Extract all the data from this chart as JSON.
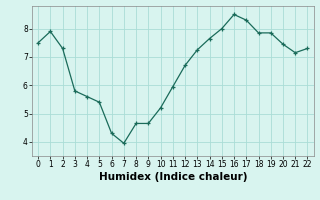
{
  "x": [
    0,
    1,
    2,
    3,
    4,
    5,
    6,
    7,
    8,
    9,
    10,
    11,
    12,
    13,
    14,
    15,
    16,
    17,
    18,
    19,
    20,
    21,
    22
  ],
  "y": [
    7.5,
    7.9,
    7.3,
    5.8,
    5.6,
    5.4,
    4.3,
    3.95,
    4.65,
    4.65,
    5.2,
    5.95,
    6.7,
    7.25,
    7.65,
    8.0,
    8.5,
    8.3,
    7.85,
    7.85,
    7.45,
    7.15,
    7.3
  ],
  "xlabel": "Humidex (Indice chaleur)",
  "bg_color": "#d8f4ef",
  "line_color": "#1a6b5a",
  "grid_color": "#aaddd6",
  "marker": "+",
  "ylim": [
    3.5,
    8.8
  ],
  "xlim": [
    -0.5,
    22.5
  ],
  "yticks": [
    4,
    5,
    6,
    7,
    8
  ],
  "xticks": [
    0,
    1,
    2,
    3,
    4,
    5,
    6,
    7,
    8,
    9,
    10,
    11,
    12,
    13,
    14,
    15,
    16,
    17,
    18,
    19,
    20,
    21,
    22
  ],
  "tick_fontsize": 5.5,
  "xlabel_fontsize": 7.5
}
